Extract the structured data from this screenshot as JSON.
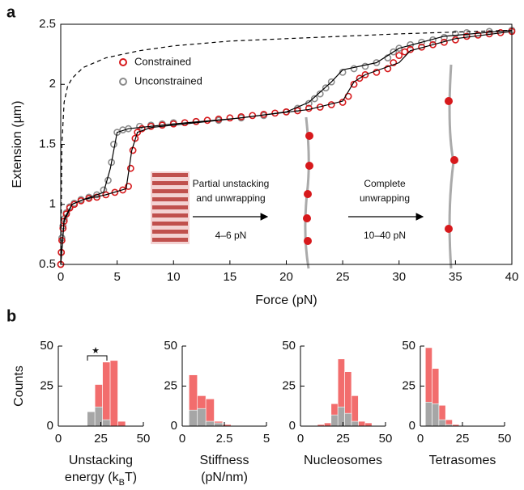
{
  "chart_data": [
    {
      "type": "scatter",
      "panel_label": "a",
      "xlabel": [
        [
          "Force (pN)"
        ]
      ],
      "ylabel": "Extension (µm)",
      "xlim": [
        0,
        40
      ],
      "ylim": [
        0.5,
        2.5
      ],
      "xticks": [
        0,
        5,
        10,
        15,
        20,
        25,
        30,
        35,
        40
      ],
      "yticks": [
        0.5,
        1,
        1.5,
        2,
        2.5
      ],
      "series": [
        {
          "name": "Constrained",
          "color": "#d7191c",
          "mode": "markers",
          "x": [
            0,
            0.05,
            0.1,
            0.2,
            0.3,
            0.5,
            0.8,
            1.2,
            1.8,
            2.5,
            3.2,
            4,
            4.8,
            5.5,
            6,
            6.2,
            6.4,
            6.6,
            6.8,
            7.2,
            8,
            9,
            10,
            11,
            12,
            13,
            14,
            15,
            16,
            17,
            18,
            19,
            20,
            21,
            22,
            23,
            24,
            25,
            25.5,
            26,
            26.5,
            27,
            28,
            29,
            29.5,
            30,
            30.5,
            31,
            32,
            33,
            34,
            35,
            36,
            37,
            38,
            39,
            40
          ],
          "values": [
            0.5,
            0.6,
            0.7,
            0.8,
            0.86,
            0.92,
            0.97,
            1.0,
            1.03,
            1.05,
            1.06,
            1.08,
            1.1,
            1.12,
            1.15,
            1.3,
            1.45,
            1.55,
            1.6,
            1.63,
            1.65,
            1.66,
            1.67,
            1.68,
            1.69,
            1.7,
            1.71,
            1.72,
            1.73,
            1.74,
            1.75,
            1.76,
            1.77,
            1.78,
            1.8,
            1.81,
            1.83,
            1.85,
            1.9,
            2.0,
            2.05,
            2.08,
            2.1,
            2.13,
            2.18,
            2.24,
            2.27,
            2.29,
            2.31,
            2.33,
            2.35,
            2.37,
            2.4,
            2.41,
            2.42,
            2.43,
            2.44
          ]
        },
        {
          "name": "Unconstrained",
          "color": "#8c8c8c",
          "mode": "markers",
          "x": [
            0,
            0.05,
            0.1,
            0.2,
            0.3,
            0.5,
            0.8,
            1.2,
            1.8,
            2.5,
            3.2,
            3.8,
            4.2,
            4.5,
            4.7,
            5,
            5.5,
            6,
            7,
            8,
            9,
            10,
            12,
            14,
            16,
            18,
            20,
            21,
            22,
            22.5,
            23,
            23.5,
            24,
            25,
            26,
            27,
            28,
            29,
            29.5,
            30,
            31,
            32,
            33,
            34,
            35,
            36,
            38,
            40
          ],
          "values": [
            0.5,
            0.6,
            0.72,
            0.82,
            0.88,
            0.93,
            0.98,
            1.01,
            1.04,
            1.06,
            1.08,
            1.12,
            1.2,
            1.35,
            1.5,
            1.6,
            1.62,
            1.63,
            1.65,
            1.66,
            1.67,
            1.68,
            1.69,
            1.7,
            1.72,
            1.74,
            1.77,
            1.8,
            1.84,
            1.88,
            1.92,
            1.97,
            2.02,
            2.1,
            2.13,
            2.15,
            2.18,
            2.22,
            2.27,
            2.3,
            2.33,
            2.35,
            2.37,
            2.39,
            2.42,
            2.43,
            2.44,
            2.45
          ]
        },
        {
          "color": "#000000",
          "mode": "line",
          "x": [
            0,
            0.3,
            1,
            2,
            4,
            5.8,
            6.3,
            6.8,
            8,
            15,
            22,
            25,
            26,
            27,
            30,
            31,
            35,
            40
          ],
          "values": [
            0.5,
            0.86,
            1.0,
            1.04,
            1.08,
            1.13,
            1.45,
            1.6,
            1.64,
            1.71,
            1.79,
            1.86,
            2.02,
            2.08,
            2.18,
            2.28,
            2.38,
            2.44
          ]
        },
        {
          "color": "#000000",
          "mode": "line",
          "x": [
            0,
            0.3,
            1,
            2,
            3.8,
            4.4,
            5,
            6,
            10,
            16,
            20,
            22,
            24,
            25,
            28,
            30,
            34,
            40
          ],
          "values": [
            0.5,
            0.88,
            1.0,
            1.04,
            1.1,
            1.3,
            1.6,
            1.63,
            1.67,
            1.72,
            1.77,
            1.85,
            2.02,
            2.12,
            2.18,
            2.3,
            2.4,
            2.45
          ]
        },
        {
          "color": "#000000",
          "mode": "line",
          "dashed": true,
          "x": [
            0,
            0.1,
            0.3,
            0.6,
            1,
            2,
            4,
            7,
            10,
            15,
            20,
            30,
            40
          ],
          "values": [
            0.5,
            1.5,
            1.85,
            1.98,
            2.05,
            2.14,
            2.22,
            2.28,
            2.32,
            2.36,
            2.38,
            2.42,
            2.45
          ]
        }
      ],
      "annotations": [
        "Partial unstacking",
        "and unwrapping",
        "4–6 pN",
        "Complete",
        "unwrapping",
        "10–40 pN"
      ]
    },
    {
      "type": "histogram",
      "panel_label": "b",
      "xlabel": [
        [
          "Unstacking"
        ],
        [
          "energy (k",
          {
            "sub": "B"
          },
          "T)"
        ]
      ],
      "ylabel": "Counts",
      "xlim": [
        0,
        50
      ],
      "ylim": [
        0,
        50
      ],
      "xticks": [
        0,
        25,
        50
      ],
      "yticks": [
        0,
        25,
        50
      ],
      "bins": [
        17,
        21.5,
        26,
        30.5,
        35,
        39.5
      ],
      "series": [
        {
          "color": "#f26d6d",
          "values": [
            0,
            26,
            40,
            41,
            3
          ]
        },
        {
          "color": "#a6a6a6",
          "values": [
            9,
            12,
            4,
            0,
            0
          ]
        }
      ],
      "annotations": [
        "★"
      ]
    },
    {
      "type": "histogram",
      "xlabel": [
        [
          "Stiffness"
        ],
        [
          "(pN/nm)"
        ]
      ],
      "xlim": [
        0,
        5
      ],
      "ylim": [
        0,
        50
      ],
      "xticks": [
        0,
        2.5,
        5
      ],
      "yticks": [
        0,
        25,
        50
      ],
      "bins": [
        0.4,
        0.9,
        1.4,
        1.9,
        2.4,
        2.9
      ],
      "series": [
        {
          "color": "#f26d6d",
          "values": [
            32,
            19,
            17,
            3,
            1
          ]
        },
        {
          "color": "#a6a6a6",
          "values": [
            10,
            11,
            3,
            2,
            0
          ]
        }
      ]
    },
    {
      "type": "histogram",
      "xlabel": [
        [
          "Nucleosomes"
        ]
      ],
      "xlim": [
        0,
        50
      ],
      "ylim": [
        0,
        50
      ],
      "xticks": [
        0,
        25,
        50
      ],
      "yticks": [
        0,
        25,
        50
      ],
      "bins": [
        10,
        14,
        18,
        22,
        26,
        30,
        34,
        38,
        42
      ],
      "series": [
        {
          "color": "#f26d6d",
          "values": [
            1,
            2,
            14,
            42,
            34,
            19,
            3,
            2
          ]
        },
        {
          "color": "#a6a6a6",
          "values": [
            0,
            0,
            7,
            12,
            8,
            3,
            0,
            0
          ]
        }
      ]
    },
    {
      "type": "histogram",
      "xlabel": [
        [
          "Tetrasomes"
        ]
      ],
      "xlim": [
        0,
        50
      ],
      "ylim": [
        0,
        50
      ],
      "xticks": [
        0,
        25,
        50
      ],
      "yticks": [
        0,
        25,
        50
      ],
      "bins": [
        3,
        7,
        11,
        15,
        19,
        23
      ],
      "series": [
        {
          "color": "#f26d6d",
          "values": [
            49,
            36,
            13,
            4,
            1
          ]
        },
        {
          "color": "#a6a6a6",
          "values": [
            15,
            14,
            4,
            1,
            0
          ]
        }
      ]
    }
  ]
}
